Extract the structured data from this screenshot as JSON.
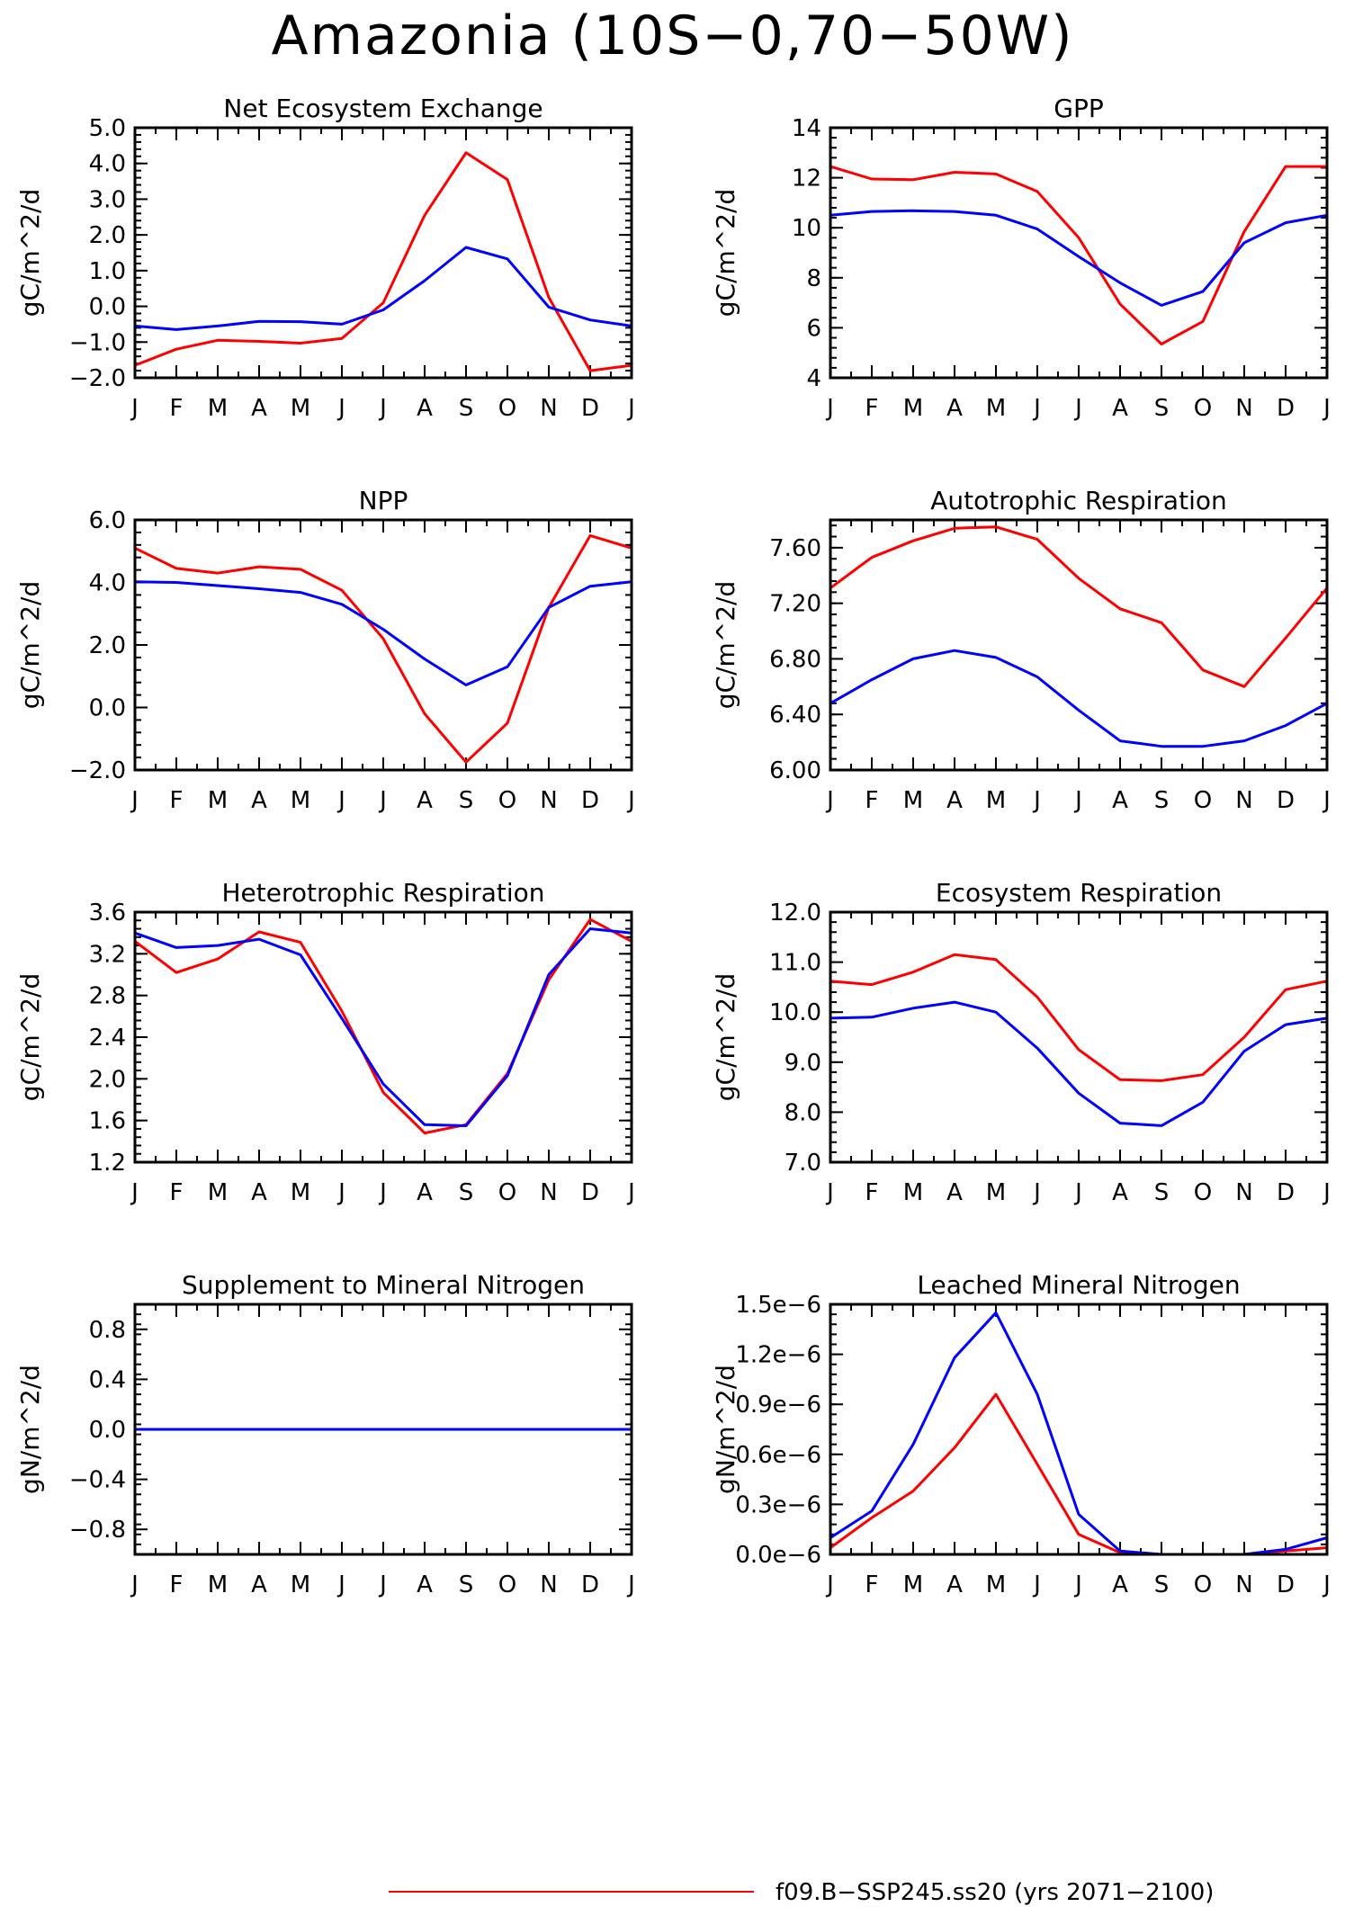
{
  "title": "Amazonia (10S−0,70−50W)",
  "colors": {
    "red": "#ff0000",
    "blue": "#0000ff",
    "axis": "#000000"
  },
  "legend": {
    "label": "f09.B−SSP245.ss20 (yrs 2071−2100)",
    "color": "#ff0000"
  },
  "chart_data": [
    {
      "type": "line",
      "title": "Net Ecosystem Exchange",
      "ylabel": "gC/m^2/d",
      "xticks": [
        "J",
        "F",
        "M",
        "A",
        "M",
        "J",
        "J",
        "A",
        "S",
        "O",
        "N",
        "D",
        "J"
      ],
      "yticks": [
        "−2.0",
        "−1.0",
        "0.0",
        "1.0",
        "2.0",
        "3.0",
        "4.0",
        "5.0"
      ],
      "ylim": [
        -2.0,
        5.0
      ],
      "series": [
        {
          "color": "#ff0000",
          "values": [
            -1.65,
            -1.2,
            -0.95,
            -0.98,
            -1.03,
            -0.9,
            0.1,
            2.55,
            4.3,
            3.55,
            0.25,
            -1.8,
            -1.65
          ]
        },
        {
          "color": "#0000ff",
          "values": [
            -0.55,
            -0.65,
            -0.55,
            -0.42,
            -0.43,
            -0.5,
            -0.1,
            0.72,
            1.65,
            1.33,
            -0.02,
            -0.38,
            -0.55
          ]
        }
      ]
    },
    {
      "type": "line",
      "title": "GPP",
      "ylabel": "gC/m^2/d",
      "xticks": [
        "J",
        "F",
        "M",
        "A",
        "M",
        "J",
        "J",
        "A",
        "S",
        "O",
        "N",
        "D",
        "J"
      ],
      "yticks": [
        "4",
        "6",
        "8",
        "10",
        "12",
        "14"
      ],
      "ylim": [
        4,
        14
      ],
      "series": [
        {
          "color": "#ff0000",
          "values": [
            12.45,
            11.95,
            11.92,
            12.22,
            12.15,
            11.45,
            9.6,
            6.95,
            5.35,
            6.25,
            9.85,
            12.45,
            12.45
          ]
        },
        {
          "color": "#0000ff",
          "values": [
            10.5,
            10.65,
            10.68,
            10.65,
            10.5,
            9.95,
            8.85,
            7.8,
            6.9,
            7.45,
            9.4,
            10.2,
            10.5
          ]
        }
      ]
    },
    {
      "type": "line",
      "title": "NPP",
      "ylabel": "gC/m^2/d",
      "xticks": [
        "J",
        "F",
        "M",
        "A",
        "M",
        "J",
        "J",
        "A",
        "S",
        "O",
        "N",
        "D",
        "J"
      ],
      "yticks": [
        "−2.0",
        "0.0",
        "2.0",
        "4.0",
        "6.0"
      ],
      "ylim": [
        -2.0,
        6.0
      ],
      "series": [
        {
          "color": "#ff0000",
          "values": [
            5.1,
            4.45,
            4.3,
            4.5,
            4.42,
            3.75,
            2.2,
            -0.2,
            -1.75,
            -0.5,
            3.2,
            5.5,
            5.1
          ]
        },
        {
          "color": "#0000ff",
          "values": [
            4.02,
            4.0,
            3.9,
            3.8,
            3.68,
            3.3,
            2.5,
            1.55,
            0.72,
            1.3,
            3.2,
            3.88,
            4.02
          ]
        }
      ]
    },
    {
      "type": "line",
      "title": "Autotrophic Respiration",
      "ylabel": "gC/m^2/d",
      "xticks": [
        "J",
        "F",
        "M",
        "A",
        "M",
        "J",
        "J",
        "A",
        "S",
        "O",
        "N",
        "D",
        "J"
      ],
      "yticks": [
        "6.00",
        "6.40",
        "6.80",
        "7.20",
        "7.60"
      ],
      "ylim": [
        6.0,
        7.8
      ],
      "series": [
        {
          "color": "#ff0000",
          "values": [
            7.31,
            7.53,
            7.65,
            7.74,
            7.75,
            7.66,
            7.38,
            7.16,
            7.06,
            6.72,
            6.6,
            6.95,
            7.31
          ]
        },
        {
          "color": "#0000ff",
          "values": [
            6.48,
            6.65,
            6.8,
            6.86,
            6.81,
            6.67,
            6.43,
            6.21,
            6.17,
            6.17,
            6.21,
            6.32,
            6.48
          ]
        }
      ]
    },
    {
      "type": "line",
      "title": "Heterotrophic Respiration",
      "ylabel": "gC/m^2/d",
      "xticks": [
        "J",
        "F",
        "M",
        "A",
        "M",
        "J",
        "J",
        "A",
        "S",
        "O",
        "N",
        "D",
        "J"
      ],
      "yticks": [
        "1.2",
        "1.6",
        "2.0",
        "2.4",
        "2.8",
        "3.2",
        "3.6"
      ],
      "ylim": [
        1.2,
        3.6
      ],
      "series": [
        {
          "color": "#ff0000",
          "values": [
            3.32,
            3.02,
            3.15,
            3.41,
            3.31,
            2.65,
            1.87,
            1.48,
            1.56,
            2.05,
            2.95,
            3.53,
            3.32
          ]
        },
        {
          "color": "#0000ff",
          "values": [
            3.4,
            3.26,
            3.28,
            3.34,
            3.19,
            2.58,
            1.95,
            1.56,
            1.55,
            2.03,
            3.0,
            3.44,
            3.4
          ]
        }
      ]
    },
    {
      "type": "line",
      "title": "Ecosystem Respiration",
      "ylabel": "gC/m^2/d",
      "xticks": [
        "J",
        "F",
        "M",
        "A",
        "M",
        "J",
        "J",
        "A",
        "S",
        "O",
        "N",
        "D",
        "J"
      ],
      "yticks": [
        "7.0",
        "8.0",
        "9.0",
        "10.0",
        "11.0",
        "12.0"
      ],
      "ylim": [
        7.0,
        12.0
      ],
      "series": [
        {
          "color": "#ff0000",
          "values": [
            10.62,
            10.55,
            10.8,
            11.15,
            11.05,
            10.3,
            9.25,
            8.65,
            8.63,
            8.75,
            9.5,
            10.45,
            10.62
          ]
        },
        {
          "color": "#0000ff",
          "values": [
            9.88,
            9.9,
            10.08,
            10.2,
            10.0,
            9.28,
            8.38,
            7.78,
            7.73,
            8.2,
            9.22,
            9.75,
            9.88
          ]
        }
      ]
    },
    {
      "type": "line",
      "title": "Supplement to Mineral Nitrogen",
      "ylabel": "gN/m^2/d",
      "xticks": [
        "J",
        "F",
        "M",
        "A",
        "M",
        "J",
        "J",
        "A",
        "S",
        "O",
        "N",
        "D",
        "J"
      ],
      "yticks": [
        "−0.8",
        "−0.4",
        "0.0",
        "0.4",
        "0.8"
      ],
      "ylim": [
        -1.0,
        1.0
      ],
      "series": [
        {
          "color": "#ff0000",
          "values": [
            0,
            0,
            0,
            0,
            0,
            0,
            0,
            0,
            0,
            0,
            0,
            0,
            0
          ]
        },
        {
          "color": "#0000ff",
          "values": [
            0,
            0,
            0,
            0,
            0,
            0,
            0,
            0,
            0,
            0,
            0,
            0,
            0
          ]
        }
      ]
    },
    {
      "type": "line",
      "title": "Leached Mineral Nitrogen",
      "ylabel": "gN/m^2/d",
      "xticks": [
        "J",
        "F",
        "M",
        "A",
        "M",
        "J",
        "J",
        "A",
        "S",
        "O",
        "N",
        "D",
        "J"
      ],
      "yticks": [
        "0.0e−6",
        "0.3e−6",
        "0.6e−6",
        "0.9e−6",
        "1.2e−6",
        "1.5e−6"
      ],
      "ylim": [
        0,
        1.5
      ],
      "yunit": "1e-6",
      "series": [
        {
          "color": "#ff0000",
          "values": [
            0.04,
            0.22,
            0.38,
            0.64,
            0.96,
            0.54,
            0.12,
            0.01,
            0.0,
            0.0,
            0.0,
            0.02,
            0.04
          ]
        },
        {
          "color": "#0000ff",
          "values": [
            0.1,
            0.26,
            0.66,
            1.18,
            1.45,
            0.96,
            0.24,
            0.02,
            0.0,
            0.0,
            0.0,
            0.03,
            0.1
          ]
        }
      ]
    }
  ]
}
